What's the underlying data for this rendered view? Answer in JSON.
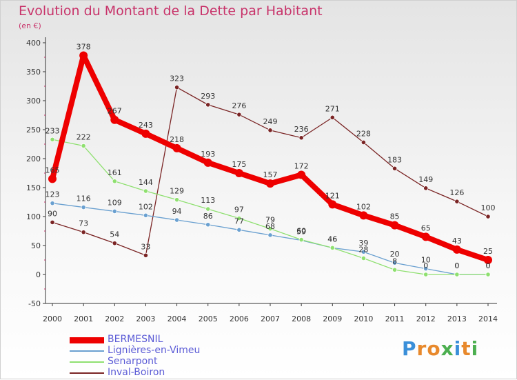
{
  "title": "Evolution du Montant de la Dette par Habitant",
  "subtitle": "(en €)",
  "logo": {
    "text": "Proxiti",
    "letter_colors": [
      "#3a8fd9",
      "#e8892c",
      "#e8892c",
      "#4caf50",
      "#3a8fd9",
      "#e8892c",
      "#4caf50"
    ]
  },
  "chart_data": {
    "type": "line",
    "title": "Evolution du Montant de la Dette par Habitant",
    "ylabel": "(en €)",
    "xlabel": "",
    "x": [
      2000,
      2001,
      2002,
      2003,
      2004,
      2005,
      2006,
      2007,
      2008,
      2009,
      2010,
      2011,
      2012,
      2013,
      2014
    ],
    "ylim": [
      -50,
      400
    ],
    "yticks": [
      -50,
      0,
      50,
      100,
      150,
      200,
      250,
      300,
      350,
      400
    ],
    "grid": false,
    "legend_position": "bottom-left",
    "series": [
      {
        "name": "BERMESNIL",
        "color": "#ee0000",
        "width": "thick",
        "values": [
          165,
          378,
          267,
          243,
          218,
          193,
          175,
          157,
          172,
          121,
          102,
          85,
          65,
          43,
          25
        ],
        "labels": [
          "165",
          "378",
          "267",
          "243",
          "218",
          "193",
          "175",
          "157",
          "172",
          "121",
          "102",
          "85",
          "65",
          "43",
          "25"
        ]
      },
      {
        "name": "Lignières-en-Vimeu",
        "color": "#6aa0d0",
        "width": "thin",
        "values": [
          123,
          116,
          109,
          102,
          94,
          86,
          77,
          68,
          59,
          46,
          39,
          20,
          10,
          0,
          0
        ],
        "labels": [
          "123",
          "116",
          "109",
          "102",
          "94",
          "86",
          "77",
          "68",
          "59",
          "46",
          "39",
          "20",
          "10",
          "0",
          "0"
        ]
      },
      {
        "name": "Senarpont",
        "color": "#8fe070",
        "width": "thin",
        "values": [
          233,
          222,
          161,
          144,
          129,
          113,
          97,
          79,
          60,
          46,
          28,
          8,
          0,
          0,
          0
        ],
        "labels": [
          "233",
          "222",
          "161",
          "144",
          "129",
          "113",
          "97",
          "79",
          "60",
          "46",
          "28",
          "8",
          "0",
          "0",
          "0"
        ]
      },
      {
        "name": "Inval-Boiron",
        "color": "#7a2424",
        "width": "thin",
        "values": [
          90,
          73,
          54,
          33,
          323,
          293,
          276,
          249,
          236,
          271,
          228,
          183,
          149,
          126,
          100
        ],
        "labels": [
          "90",
          "73",
          "54",
          "33",
          "323",
          "293",
          "276",
          "249",
          "236",
          "271",
          "228",
          "183",
          "149",
          "126",
          "100"
        ]
      }
    ]
  }
}
